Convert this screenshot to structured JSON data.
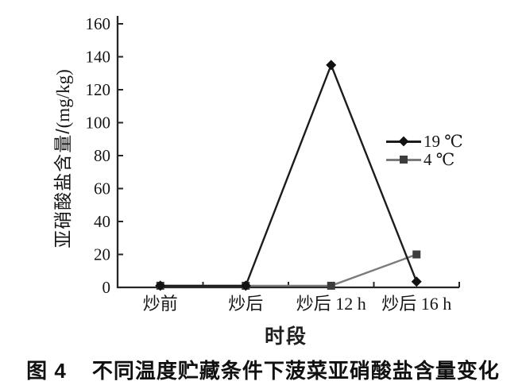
{
  "figure": {
    "caption_label": "图 4",
    "caption_text": "不同温度贮藏条件下菠菜亚硝酸盐含量变化"
  },
  "chart_data": {
    "type": "line",
    "categories": [
      "炒前",
      "炒后",
      "炒后 12 h",
      "炒后 16 h"
    ],
    "series": [
      {
        "name": "19 ℃",
        "values": [
          1,
          1,
          135,
          3.5
        ],
        "color": "#1c1c1c",
        "marker": "diamond",
        "marker_color": "#121212"
      },
      {
        "name": "4 ℃",
        "values": [
          1,
          1,
          1,
          20
        ],
        "color": "#7b7b7b",
        "marker": "square",
        "marker_color": "#3d3d3d"
      }
    ],
    "title": "",
    "xlabel": "时段",
    "ylabel": "亚硝酸盐含量/(mg/kg)",
    "ylabel_text": "亚硝酸盐含量/",
    "ylabel_unit": "(mg/kg)",
    "ylim": [
      0,
      160
    ],
    "ytick_step": 20,
    "yticks": [
      0,
      20,
      40,
      60,
      80,
      100,
      120,
      140,
      160
    ],
    "grid": false,
    "legend_position": "right-middle",
    "axis_color": "#262626"
  }
}
